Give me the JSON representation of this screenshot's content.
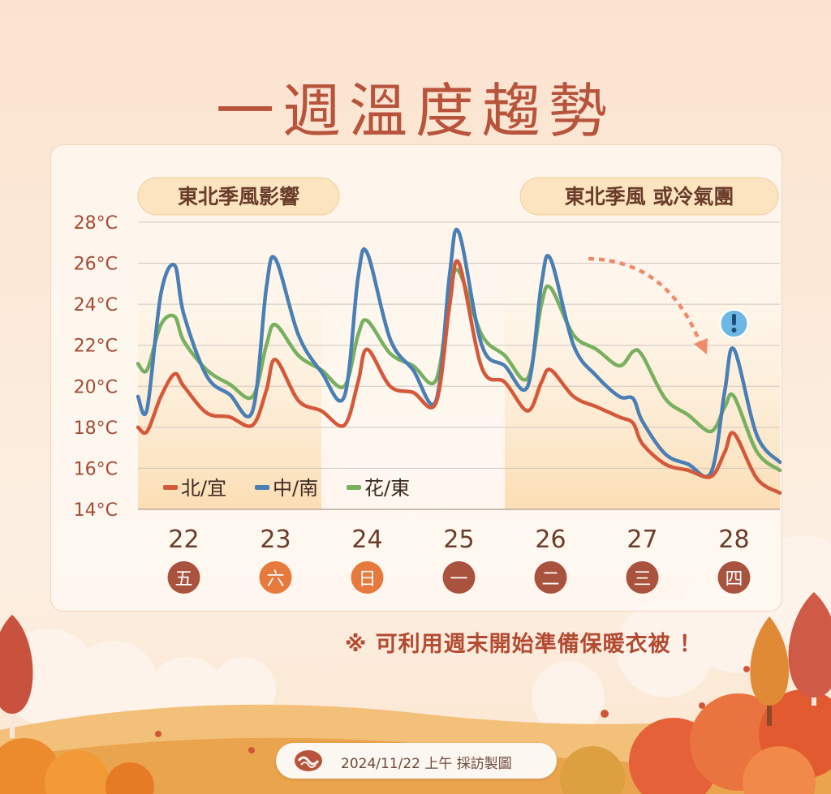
{
  "title": "一週溫度趨勢",
  "note": "※ 可利用週末開始準備保暖衣被 ！",
  "footer": {
    "text": "2024/11/22 上午 採訪製圖"
  },
  "colors": {
    "north": "#d4583a",
    "central_south": "#4a7fb5",
    "east": "#78b060",
    "title": "#b8543c",
    "day_badge": "#a9533e",
    "weekend_badge": "#e8793c"
  },
  "icons": {
    "alert": "exclamation-icon",
    "trend": "dashed-arrow-icon",
    "footer_logo": "agency-logo"
  },
  "chart_data": {
    "type": "line",
    "yunit": "°C",
    "ylim": [
      14,
      28
    ],
    "yticks": [
      "14°C",
      "16°C",
      "18°C",
      "20°C",
      "22°C",
      "24°C",
      "26°C",
      "28°C"
    ],
    "categories": [
      "22",
      "23",
      "24",
      "25",
      "26",
      "27",
      "28"
    ],
    "weekdays": [
      "五",
      "六",
      "日",
      "一",
      "二",
      "三",
      "四"
    ],
    "weekend_days": [
      "六",
      "日"
    ],
    "grid": true,
    "legend": "bottom-left",
    "labels": [
      {
        "text": "東北季風影響",
        "position": "top-left"
      },
      {
        "text": "東北季風 或冷氣團",
        "position": "top-right"
      }
    ],
    "shaded_days": [
      "22",
      "23",
      "26",
      "27",
      "28"
    ],
    "alert_day": "28",
    "series": [
      {
        "name": "北/宜",
        "color_key": "north",
        "x": [
          21.5,
          21.6,
          21.75,
          21.9,
          22.0,
          22.25,
          22.5,
          22.75,
          22.9,
          23.0,
          23.25,
          23.5,
          23.75,
          23.9,
          24.0,
          24.25,
          24.5,
          24.75,
          24.9,
          25.0,
          25.25,
          25.5,
          25.75,
          25.9,
          26.0,
          26.25,
          26.5,
          26.75,
          26.9,
          27.0,
          27.25,
          27.5,
          27.75,
          27.9,
          28.0,
          28.25,
          28.5
        ],
        "values": [
          18.0,
          17.8,
          19.5,
          20.6,
          20.0,
          18.7,
          18.5,
          18.1,
          19.8,
          21.3,
          19.3,
          18.8,
          18.1,
          20.2,
          21.8,
          20.0,
          19.7,
          19.2,
          24.0,
          26.0,
          20.9,
          20.2,
          18.8,
          20.2,
          20.8,
          19.5,
          19.0,
          18.5,
          18.2,
          17.2,
          16.2,
          15.9,
          15.6,
          16.8,
          17.7,
          15.5,
          14.8
        ]
      },
      {
        "name": "中/南",
        "color_key": "central_south",
        "x": [
          21.5,
          21.6,
          21.75,
          21.9,
          22.0,
          22.25,
          22.5,
          22.75,
          22.9,
          23.0,
          23.25,
          23.5,
          23.75,
          23.9,
          24.0,
          24.25,
          24.5,
          24.75,
          24.9,
          25.0,
          25.25,
          25.5,
          25.75,
          25.9,
          26.0,
          26.25,
          26.5,
          26.75,
          26.9,
          27.0,
          27.25,
          27.5,
          27.75,
          27.9,
          28.0,
          28.25,
          28.5
        ],
        "values": [
          19.5,
          18.9,
          24.5,
          25.9,
          23.5,
          20.5,
          19.6,
          18.8,
          24.8,
          26.2,
          22.5,
          20.7,
          19.5,
          25.3,
          26.5,
          22.3,
          20.8,
          19.3,
          25.5,
          27.5,
          22.0,
          21.0,
          20.0,
          25.0,
          26.2,
          22.0,
          20.5,
          19.5,
          19.4,
          18.3,
          16.7,
          16.2,
          15.8,
          19.8,
          21.8,
          17.6,
          16.3
        ]
      },
      {
        "name": "花/東",
        "color_key": "east",
        "x": [
          21.5,
          21.6,
          21.75,
          21.9,
          22.0,
          22.25,
          22.5,
          22.75,
          22.9,
          23.0,
          23.25,
          23.5,
          23.75,
          23.9,
          24.0,
          24.25,
          24.5,
          24.75,
          24.9,
          25.0,
          25.25,
          25.5,
          25.75,
          25.9,
          26.0,
          26.25,
          26.5,
          26.75,
          26.9,
          27.0,
          27.25,
          27.5,
          27.75,
          27.9,
          28.0,
          28.25,
          28.5
        ],
        "values": [
          21.1,
          20.8,
          23.0,
          23.4,
          22.2,
          20.8,
          20.1,
          19.5,
          22.0,
          23.0,
          21.5,
          20.8,
          20.0,
          22.5,
          23.2,
          21.6,
          21.0,
          20.3,
          24.5,
          25.6,
          22.5,
          21.5,
          20.4,
          24.0,
          24.8,
          22.5,
          21.8,
          21.0,
          21.7,
          21.5,
          19.4,
          18.6,
          17.8,
          19.0,
          19.5,
          16.8,
          15.9
        ]
      }
    ]
  }
}
